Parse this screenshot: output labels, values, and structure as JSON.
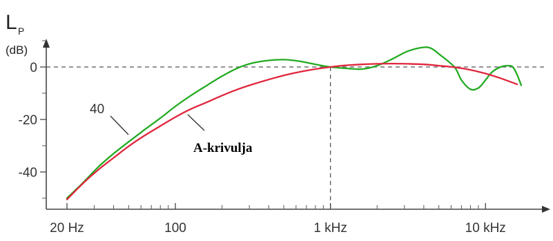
{
  "chart_data": {
    "type": "line",
    "title": "",
    "ylabel": {
      "symbol": "L",
      "subscript": "P",
      "unit": "(dB)"
    },
    "xlabel": "",
    "x_scale": "log",
    "x_ticks": [
      {
        "value": 20,
        "label": "20 Hz"
      },
      {
        "value": 100,
        "label": "100"
      },
      {
        "value": 1000,
        "label": "1 kHz"
      },
      {
        "value": 10000,
        "label": "10 kHz"
      }
    ],
    "y_ticks": [
      {
        "value": 0,
        "label": "0"
      },
      {
        "value": -20,
        "label": "-20"
      },
      {
        "value": -40,
        "label": "-40"
      }
    ],
    "reference_lines": [
      {
        "axis": "y",
        "value": 0,
        "style": "dashed"
      },
      {
        "axis": "x",
        "value": 1000,
        "style": "dashed"
      }
    ],
    "series": [
      {
        "name": "40",
        "color": "#22aa22",
        "points": [
          [
            20,
            -50
          ],
          [
            25,
            -44.5
          ],
          [
            32,
            -38
          ],
          [
            40,
            -33
          ],
          [
            50,
            -28.5
          ],
          [
            63,
            -24
          ],
          [
            80,
            -19.5
          ],
          [
            100,
            -15
          ],
          [
            125,
            -11
          ],
          [
            160,
            -7
          ],
          [
            200,
            -3.5
          ],
          [
            250,
            -0.5
          ],
          [
            315,
            1.5
          ],
          [
            400,
            2.5
          ],
          [
            500,
            2.8
          ],
          [
            630,
            2.2
          ],
          [
            800,
            1
          ],
          [
            1000,
            0
          ],
          [
            1250,
            -0.5
          ],
          [
            1600,
            -0.8
          ],
          [
            2000,
            0.5
          ],
          [
            2500,
            3
          ],
          [
            3150,
            6
          ],
          [
            4000,
            7.5
          ],
          [
            4500,
            7
          ],
          [
            5000,
            5
          ],
          [
            6300,
            0
          ],
          [
            7000,
            -5
          ],
          [
            8000,
            -8.5
          ],
          [
            9000,
            -8
          ],
          [
            10000,
            -5
          ],
          [
            11000,
            -2
          ],
          [
            12500,
            0
          ],
          [
            14000,
            0.5
          ],
          [
            15000,
            0
          ],
          [
            16000,
            -3
          ],
          [
            17000,
            -7
          ]
        ]
      },
      {
        "name": "A-krivulja",
        "color": "#e0253c",
        "points": [
          [
            20,
            -50.5
          ],
          [
            25,
            -44.7
          ],
          [
            31.5,
            -39.4
          ],
          [
            40,
            -34.6
          ],
          [
            50,
            -30.2
          ],
          [
            63,
            -26.2
          ],
          [
            80,
            -22.5
          ],
          [
            100,
            -19.1
          ],
          [
            125,
            -16.1
          ],
          [
            160,
            -13.4
          ],
          [
            200,
            -10.9
          ],
          [
            250,
            -8.6
          ],
          [
            315,
            -6.6
          ],
          [
            400,
            -4.8
          ],
          [
            500,
            -3.2
          ],
          [
            630,
            -1.9
          ],
          [
            800,
            -0.8
          ],
          [
            1000,
            0
          ],
          [
            1250,
            0.6
          ],
          [
            1600,
            1
          ],
          [
            2000,
            1.2
          ],
          [
            2500,
            1.3
          ],
          [
            3150,
            1.2
          ],
          [
            4000,
            1
          ],
          [
            5000,
            0.5
          ],
          [
            6300,
            -0.1
          ],
          [
            8000,
            -1.1
          ],
          [
            10000,
            -2.5
          ],
          [
            12500,
            -4.3
          ],
          [
            16000,
            -6.6
          ]
        ]
      }
    ],
    "annotations": [
      {
        "text": "40",
        "target": "series-40"
      },
      {
        "text": "A-krivulja",
        "target": "series-a"
      }
    ]
  }
}
